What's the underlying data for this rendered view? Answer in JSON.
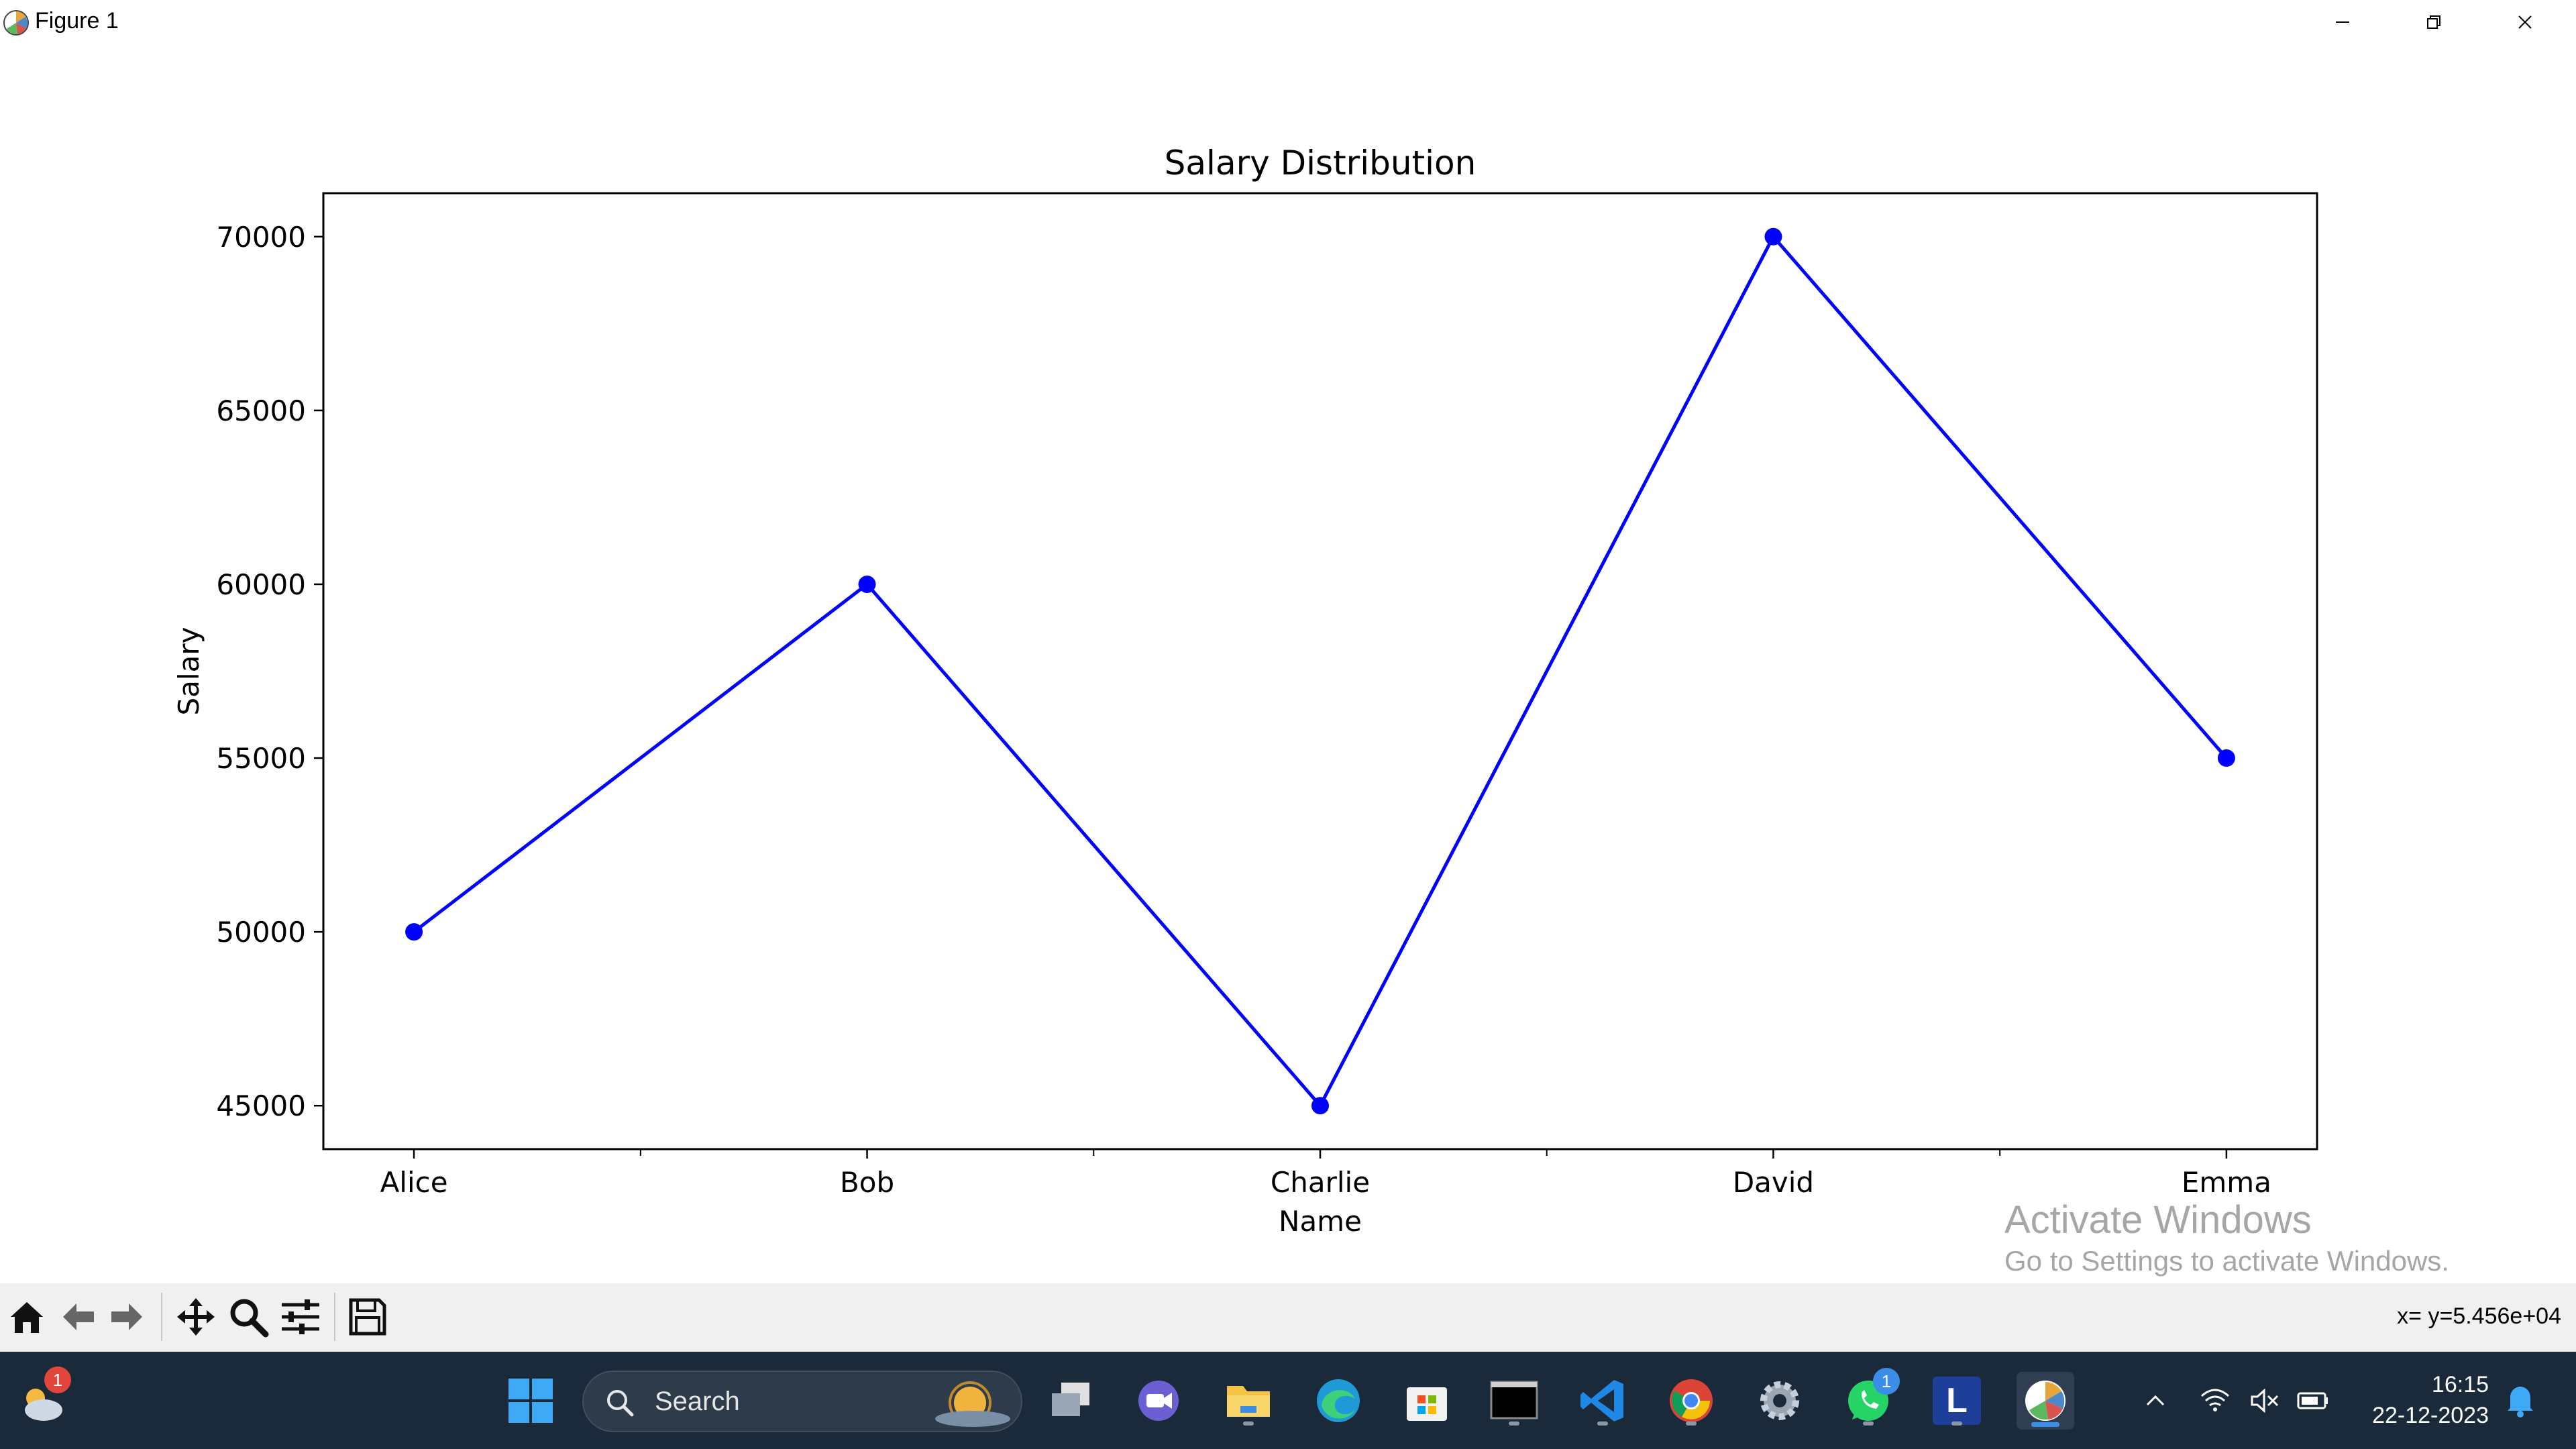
{
  "window": {
    "title": "Figure 1",
    "minimize_label": "—",
    "maximize_label": "❐",
    "close_label": "✕"
  },
  "chart_data": {
    "type": "line",
    "title": "Salary Distribution",
    "xlabel": "Name",
    "ylabel": "Salary",
    "categories": [
      "Alice",
      "Bob",
      "Charlie",
      "David",
      "Emma"
    ],
    "series": [
      {
        "values": [
          50000,
          60000,
          45000,
          70000,
          55000
        ],
        "color": "#0000ff",
        "marker": "circle"
      }
    ],
    "yticks": [
      45000,
      50000,
      55000,
      60000,
      65000,
      70000
    ],
    "ylim": [
      43750,
      71250
    ],
    "grid": false
  },
  "toolbar": {
    "buttons": [
      "home-icon",
      "back-arrow-icon",
      "forward-arrow-icon",
      "pan-icon",
      "zoom-icon",
      "configure-subplots-icon",
      "save-icon"
    ],
    "coordinate_readout": "x= y=5.456e+04"
  },
  "watermark": {
    "title": "Activate Windows",
    "subtitle": "Go to Settings to activate Windows."
  },
  "taskbar": {
    "weather_badge": "1",
    "search_placeholder": "Search",
    "whatsapp_badge": "1",
    "launcher_letter": "L",
    "time": "16:15",
    "date": "22-12-2023",
    "colors": {
      "background": "#1b2a3a",
      "accent": "#3b8ee8"
    }
  }
}
